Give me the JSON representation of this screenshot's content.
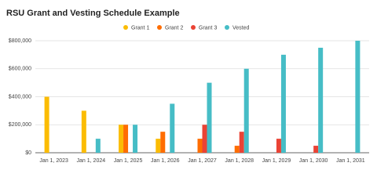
{
  "chart_data": {
    "type": "bar",
    "title": "RSU Grant and Vesting Schedule Example",
    "categories": [
      "Jan 1, 2023",
      "Jan 1, 2024",
      "Jan 1, 2025",
      "Jan 1, 2026",
      "Jan 1, 2027",
      "Jan 1, 2028",
      "Jan 1, 2029",
      "Jan 1, 2030",
      "Jan 1, 2031"
    ],
    "series": [
      {
        "name": "Grant 1",
        "color": "#fbbc04",
        "values": [
          400000,
          300000,
          200000,
          100000,
          0,
          0,
          0,
          0,
          0
        ]
      },
      {
        "name": "Grant 2",
        "color": "#ff6d01",
        "values": [
          0,
          0,
          200000,
          150000,
          100000,
          50000,
          0,
          0,
          0
        ]
      },
      {
        "name": "Grant 3",
        "color": "#ea4335",
        "values": [
          0,
          0,
          0,
          0,
          200000,
          150000,
          100000,
          50000,
          0
        ]
      },
      {
        "name": "Vested",
        "color": "#46bdc6",
        "values": [
          0,
          100000,
          200000,
          350000,
          500000,
          600000,
          700000,
          750000,
          800000
        ]
      }
    ],
    "ylim": [
      0,
      800000
    ],
    "yticks": [
      {
        "value": 0,
        "label": "$0"
      },
      {
        "value": 200000,
        "label": "$200,000"
      },
      {
        "value": 400000,
        "label": "$400,000"
      },
      {
        "value": 600000,
        "label": "$600,000"
      },
      {
        "value": 800000,
        "label": "$800,000"
      }
    ],
    "grid": true,
    "legend": "top"
  }
}
